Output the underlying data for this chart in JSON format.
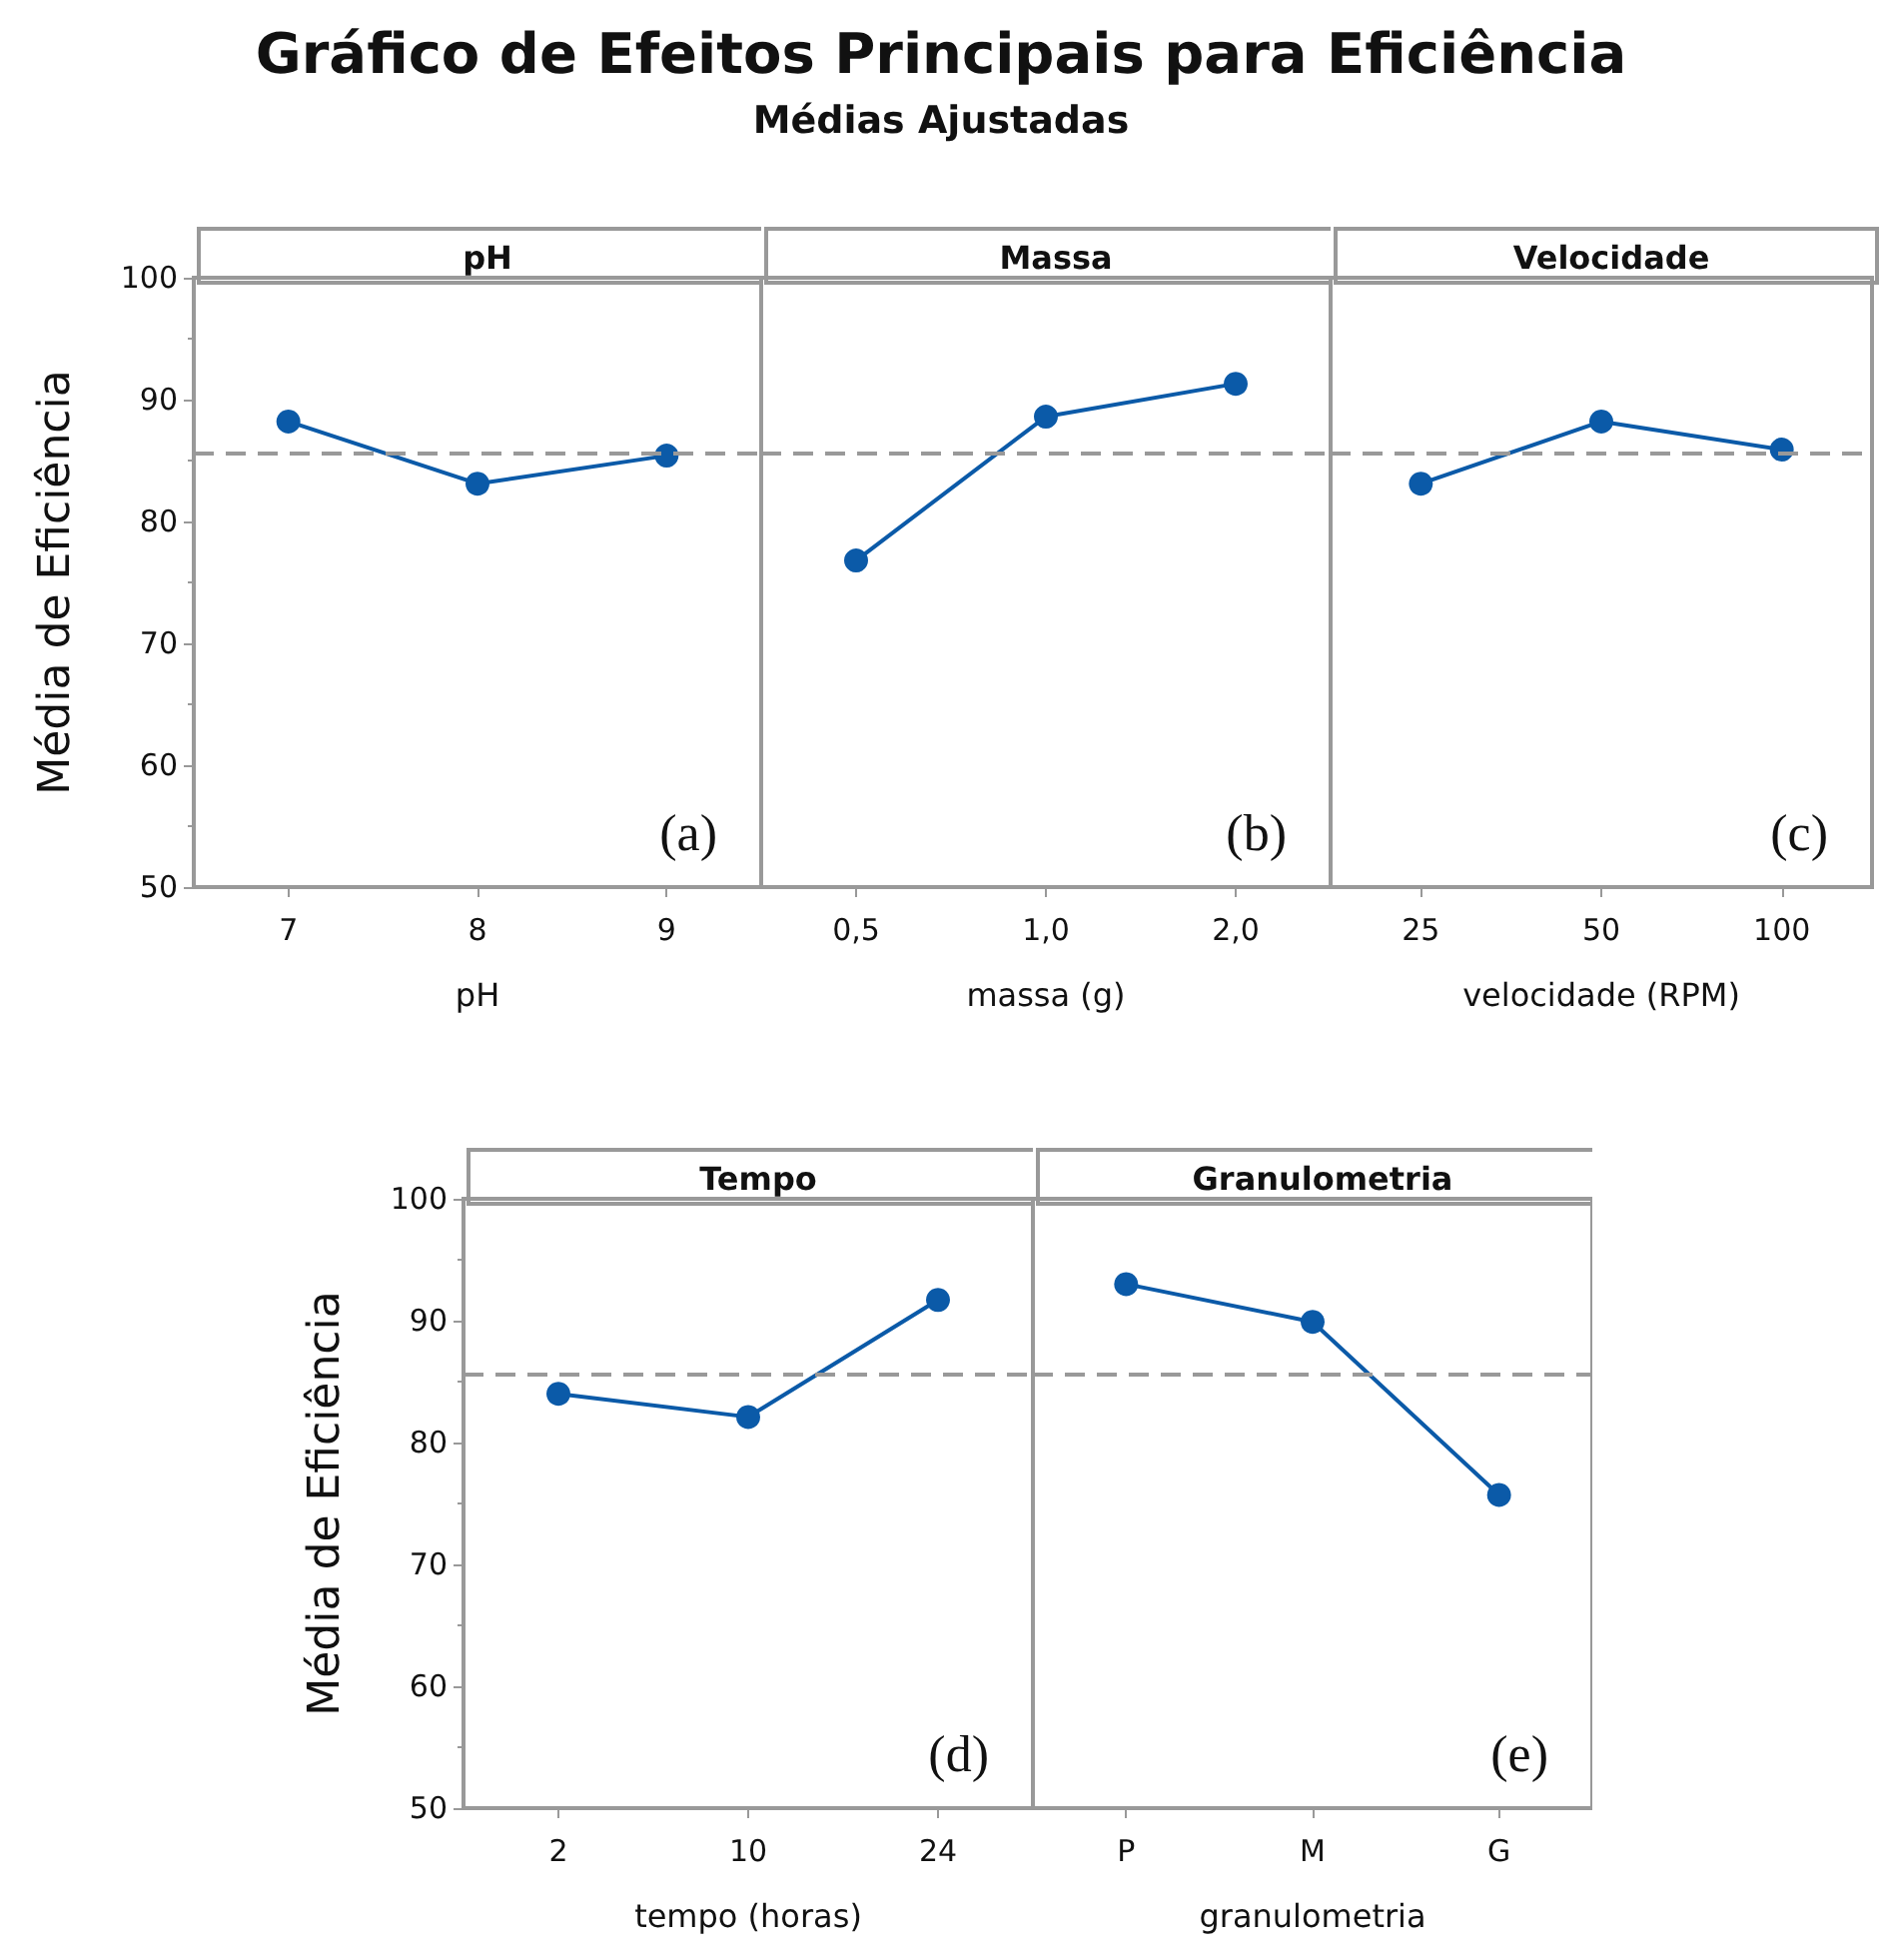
{
  "chart_data": [
    {
      "type": "other",
      "title": "Gráfico de Efeitos Principais para Eficiência",
      "subtitle": "Médias Ajustadas"
    },
    {
      "type": "line",
      "title": "pH",
      "xlabel": "pH",
      "ylabel": "Média de Eficiência",
      "annotations": [
        "(a)"
      ],
      "categories": [
        "7",
        "8",
        "9"
      ],
      "series": [
        {
          "color": "#0b5aa8",
          "values": [
            88.2,
            83.1,
            85.4
          ]
        }
      ],
      "ylim": [
        50,
        100
      ],
      "yticks": [
        50,
        60,
        70,
        80,
        90,
        100
      ],
      "ref_lines": [
        {
          "axis": "y",
          "value": 85.6,
          "color": "#999999",
          "line_style": "dashed"
        }
      ],
      "marker": "circle",
      "line_style": "solid",
      "grid": false
    },
    {
      "type": "line",
      "title": "Massa",
      "xlabel": "massa (g)",
      "annotations": [
        "(b)"
      ],
      "categories": [
        "0,5",
        "1,0",
        "2,0"
      ],
      "series": [
        {
          "color": "#0b5aa8",
          "values": [
            76.8,
            88.6,
            91.3
          ]
        }
      ],
      "ylim": [
        50,
        100
      ],
      "yticks": [
        50,
        60,
        70,
        80,
        90,
        100
      ],
      "ref_lines": [
        {
          "axis": "y",
          "value": 85.6,
          "color": "#999999",
          "line_style": "dashed"
        }
      ],
      "marker": "circle",
      "line_style": "solid",
      "grid": false,
      "tick_labels": "x"
    },
    {
      "type": "line",
      "title": "Velocidade",
      "xlabel": "velocidade (RPM)",
      "annotations": [
        "(c)"
      ],
      "categories": [
        "25",
        "50",
        "100"
      ],
      "series": [
        {
          "color": "#0b5aa8",
          "values": [
            83.1,
            88.2,
            85.9
          ]
        }
      ],
      "ylim": [
        50,
        100
      ],
      "yticks": [
        50,
        60,
        70,
        80,
        90,
        100
      ],
      "ref_lines": [
        {
          "axis": "y",
          "value": 85.6,
          "color": "#999999",
          "line_style": "dashed"
        }
      ],
      "marker": "circle",
      "line_style": "solid",
      "grid": false,
      "tick_labels": "x"
    },
    {
      "type": "line",
      "title": "Tempo",
      "xlabel": "tempo (horas)",
      "ylabel": "Média de Eficiência",
      "annotations": [
        "(d)"
      ],
      "categories": [
        "2",
        "10",
        "24"
      ],
      "series": [
        {
          "color": "#0b5aa8",
          "values": [
            84.0,
            82.1,
            91.7
          ]
        }
      ],
      "ylim": [
        50,
        100
      ],
      "yticks": [
        50,
        60,
        70,
        80,
        90,
        100
      ],
      "ref_lines": [
        {
          "axis": "y",
          "value": 85.6,
          "color": "#999999",
          "line_style": "dashed"
        }
      ],
      "marker": "circle",
      "line_style": "solid",
      "grid": false
    },
    {
      "type": "line",
      "title": "Granulometria",
      "xlabel": "granulometria",
      "annotations": [
        "(e)"
      ],
      "categories": [
        "P",
        "M",
        "G"
      ],
      "series": [
        {
          "color": "#0b5aa8",
          "values": [
            93.0,
            89.9,
            75.7
          ]
        }
      ],
      "ylim": [
        50,
        100
      ],
      "yticks": [
        50,
        60,
        70,
        80,
        90,
        100
      ],
      "ref_lines": [
        {
          "axis": "y",
          "value": 85.6,
          "color": "#999999",
          "line_style": "dashed"
        }
      ],
      "marker": "circle",
      "line_style": "solid",
      "grid": false,
      "tick_labels": "x"
    }
  ]
}
